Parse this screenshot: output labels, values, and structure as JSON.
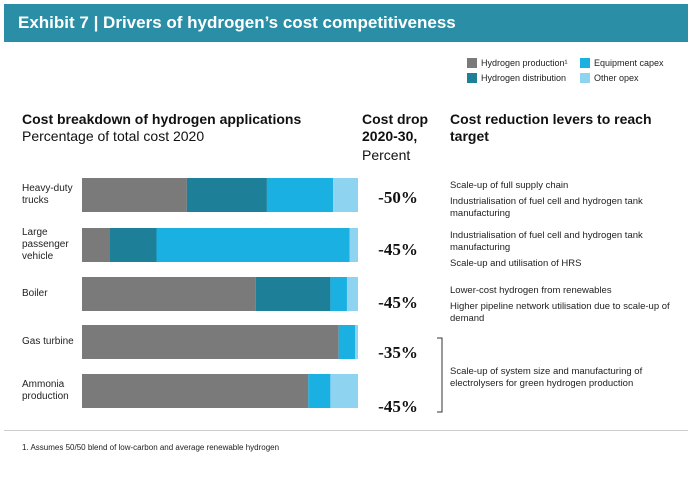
{
  "chart_data": {
    "type": "stacked-bar",
    "title": "Exhibit 7 | Drivers of hydrogen’s cost competitiveness",
    "subtitle": "Cost breakdown of hydrogen applications",
    "axis_label": "Percentage of total cost 2020",
    "categories": [
      "Heavy-duty trucks",
      "Large passenger vehicle",
      "Boiler",
      "Gas turbine",
      "Ammonia production"
    ],
    "series": [
      {
        "name": "Hydrogen production¹",
        "color": "#7a7a7a",
        "values": [
          38,
          10,
          63,
          93,
          82
        ]
      },
      {
        "name": "Hydrogen distribution",
        "color": "#1d7f98",
        "values": [
          29,
          17,
          27,
          0,
          0
        ]
      },
      {
        "name": "Equipment capex",
        "color": "#1bb0e2",
        "values": [
          24,
          70,
          6,
          6,
          8
        ]
      },
      {
        "name": "Other opex",
        "color": "#8ed3ef",
        "values": [
          9,
          3,
          4,
          1,
          10
        ]
      }
    ],
    "cost_drop_title": "Cost drop 2020-30,",
    "cost_drop_unit": "Percent",
    "cost_drop": [
      "-50%",
      "-45%",
      "-45%",
      "-35%",
      "-45%"
    ],
    "levers_title": "Cost reduction levers to reach target",
    "levers": [
      [
        "Scale-up of full supply chain",
        "Industrialisation of fuel cell and hydrogen tank manufacturing"
      ],
      [
        "Industrialisation of fuel cell and hydrogen tank manufacturing",
        "Scale-up and utilisation of HRS"
      ],
      [
        "Lower-cost hydrogen from renewables",
        "Higher pipeline network utilisation due to scale-up of demand"
      ],
      [
        "Scale-up of system size and manufacturing of electrolysers for green hydrogen production"
      ]
    ],
    "footnote": "1.   Assumes 50/50 blend of low-carbon and average renewable hydrogen"
  }
}
